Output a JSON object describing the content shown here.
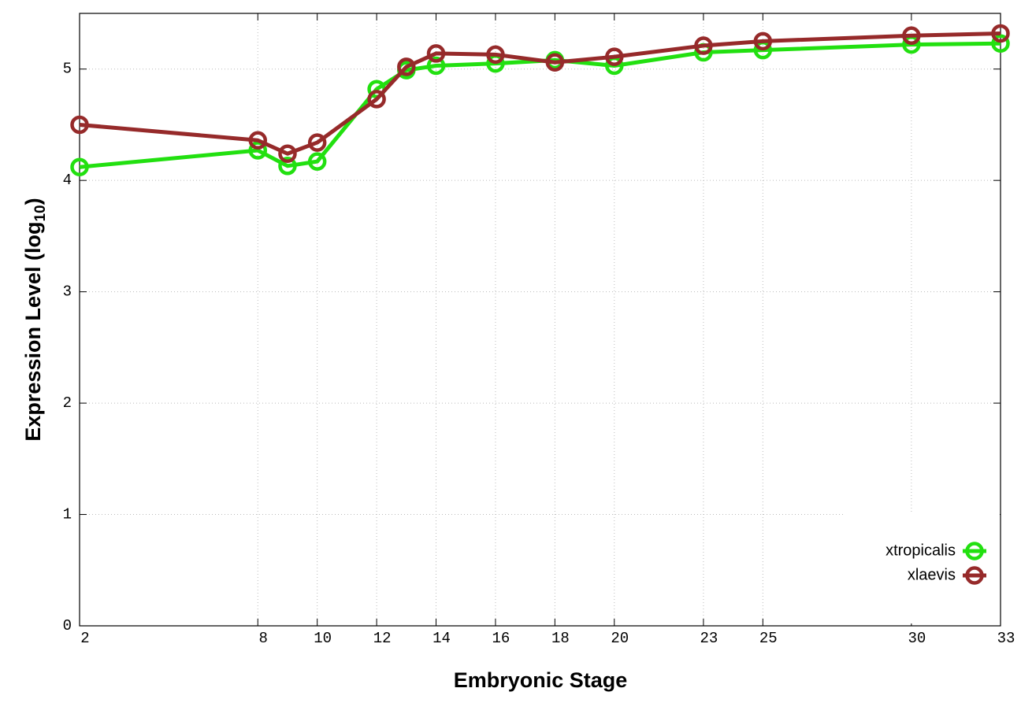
{
  "chart_data": {
    "type": "line",
    "x_label": "Embryonic Stage",
    "y_label": {
      "text": "Expression Level (log",
      "subscript": "10",
      "suffix": ")"
    },
    "x": [
      2,
      8,
      9,
      10,
      12,
      13,
      14,
      16,
      18,
      20,
      23,
      25,
      30,
      33
    ],
    "series": [
      {
        "name": "xtropicalis",
        "color": "#22e010",
        "values": [
          4.12,
          4.27,
          4.13,
          4.17,
          4.82,
          4.99,
          5.03,
          5.05,
          5.08,
          5.03,
          5.15,
          5.17,
          5.22,
          5.23
        ]
      },
      {
        "name": "xlaevis",
        "color": "#962a2a",
        "values": [
          4.5,
          4.36,
          4.24,
          4.34,
          4.73,
          5.02,
          5.14,
          5.13,
          5.06,
          5.11,
          5.21,
          5.25,
          5.3,
          5.32
        ]
      }
    ],
    "xlim": [
      2,
      33
    ],
    "xticks": [
      2,
      8,
      10,
      12,
      14,
      16,
      18,
      20,
      23,
      25,
      30,
      33
    ],
    "ylim": [
      0,
      5.5
    ],
    "yticks": [
      0,
      1,
      2,
      3,
      4,
      5
    ],
    "grid": true,
    "legend": "bottom right"
  }
}
